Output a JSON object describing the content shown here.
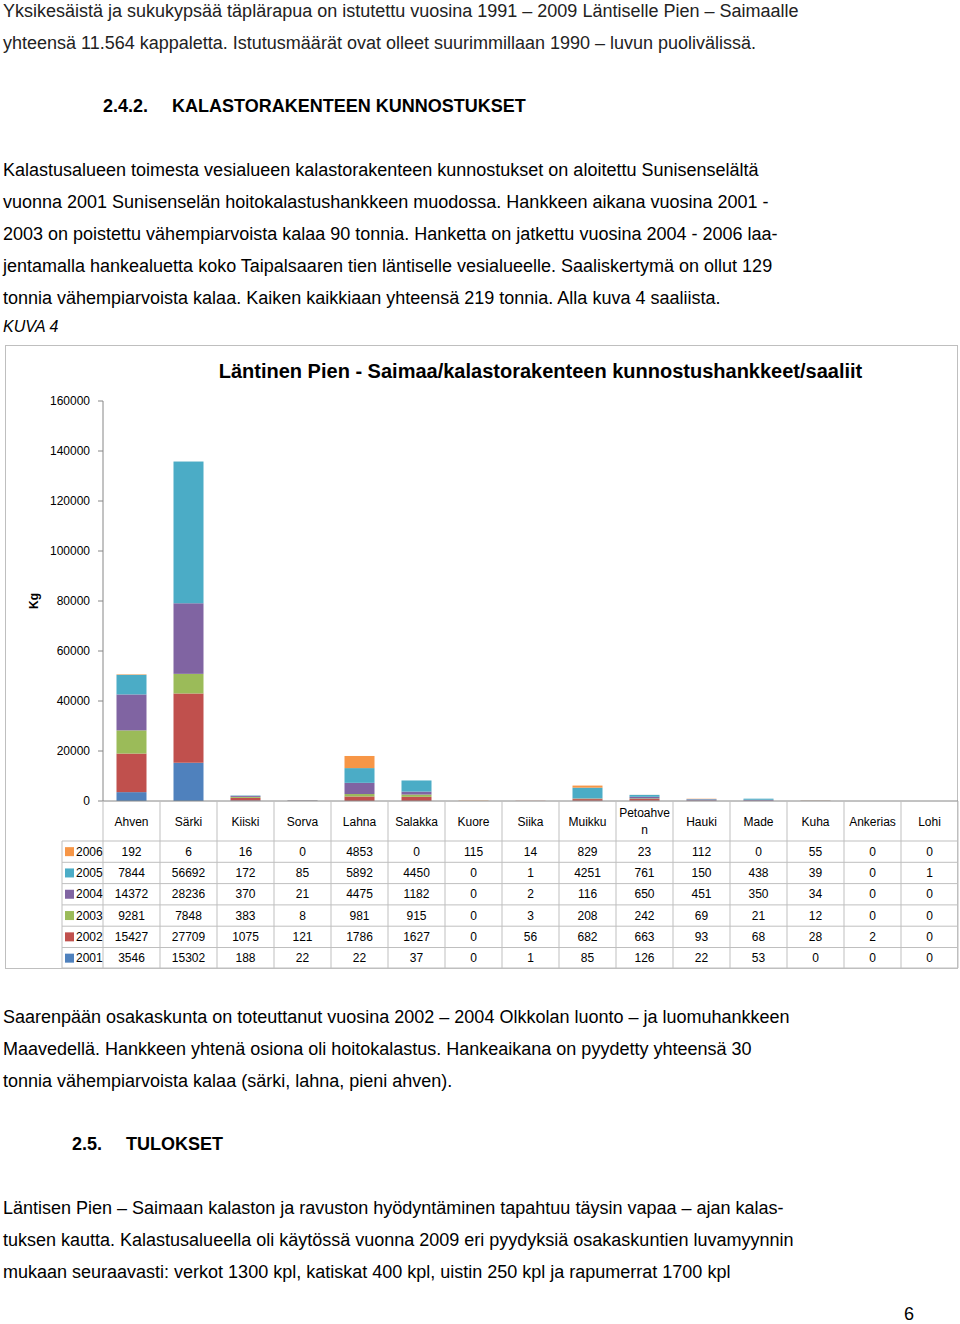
{
  "document": {
    "intro": [
      "Yksikesäistä ja sukukypsää täplärapua on istutettu vuosina 1991 – 2009 Läntiselle Pien – Saimaalle",
      "yhteensä 11.564 kappaletta. Istutusmäärät ovat olleet suurimmillaan 1990 – luvun puolivälissä."
    ],
    "section_1": {
      "number": "2.4.2.",
      "title": "KALASTORAKENTEEN KUNNOSTUKSET",
      "lines": [
        "Kalastusalueen toimesta vesialueen kalastorakenteen kunnostukset on aloitettu Sunisenselältä",
        "vuonna 2001 Sunisenselän hoitokalastushankkeen muodossa. Hankkeen aikana vuosina 2001 -",
        "2003 on poistettu vähempiarvoista kalaa 90 tonnia. Hanketta on jatkettu vuosina 2004 - 2006 laa-",
        "jentamalla hankealuetta koko Taipalsaaren tien läntiselle vesialueelle. Saaliskertymä on ollut 129",
        "tonnia vähempiarvoista kalaa. Kaiken kaikkiaan yhteensä 219 tonnia. Alla kuva 4 saaliista."
      ]
    },
    "figure_label": "KUVA 4",
    "after_chart": [
      "Saarenpään osakaskunta on toteuttanut vuosina 2002 – 2004 Olkkolan luonto – ja luomuhankkeen",
      "Maavedellä. Hankkeen yhtenä osiona oli hoitokalastus. Hankeaikana on pyydetty yhteensä 30",
      "tonnia vähempiarvoista kalaa (särki, lahna, pieni ahven)."
    ],
    "section_2": {
      "number": "2.5.",
      "title": "TULOKSET",
      "lines": [
        "Läntisen Pien – Saimaan kalaston ja ravuston hyödyntäminen tapahtuu täysin vapaa – ajan kalas-",
        "tuksen kautta. Kalastusalueella oli käytössä vuonna 2009 eri pyydyksiä osakaskuntien luvamyynnin",
        "mukaan seuraavasti: verkot 1300 kpl, katiskat 400 kpl, uistin 250 kpl ja rapumerrat 1700 kpl"
      ]
    },
    "page_number": "6"
  },
  "chart_data": {
    "type": "bar",
    "title": "Läntinen Pien - Saimaa/kalastorakenteen kunnostushankkeet/saaliit",
    "y_label": "Kg",
    "stacked": true,
    "grid": false,
    "categories": [
      "Ahven",
      "Särki",
      "Kiiski",
      "Sorva",
      "Lahna",
      "Salakka",
      "Kuore",
      "Siika",
      "Muikku",
      "Petoahven",
      "Hauki",
      "Made",
      "Kuha",
      "Ankerias",
      "Lohi"
    ],
    "series": [
      {
        "name": "2001",
        "color": "#4f81bd",
        "values": [
          3546,
          15302,
          188,
          22,
          22,
          37,
          0,
          1,
          85,
          126,
          22,
          53,
          0,
          0,
          0
        ]
      },
      {
        "name": "2002",
        "color": "#c0504d",
        "values": [
          15427,
          27709,
          1075,
          121,
          1786,
          1627,
          0,
          56,
          682,
          663,
          93,
          68,
          28,
          2,
          0
        ]
      },
      {
        "name": "2003",
        "color": "#9bbb59",
        "values": [
          9281,
          7848,
          383,
          8,
          981,
          915,
          0,
          3,
          208,
          242,
          69,
          21,
          12,
          0,
          0
        ]
      },
      {
        "name": "2004",
        "color": "#8064a2",
        "values": [
          14372,
          28236,
          370,
          21,
          4475,
          1182,
          0,
          2,
          116,
          650,
          451,
          350,
          34,
          0,
          0
        ]
      },
      {
        "name": "2005",
        "color": "#4bacc6",
        "values": [
          7844,
          56692,
          172,
          85,
          5892,
          4450,
          0,
          1,
          4251,
          761,
          150,
          438,
          39,
          0,
          1
        ]
      },
      {
        "name": "2006",
        "color": "#f79646",
        "values": [
          192,
          6,
          16,
          0,
          4853,
          0,
          115,
          14,
          829,
          23,
          112,
          0,
          55,
          0,
          0
        ]
      }
    ],
    "ylim": [
      0,
      160000
    ],
    "yticks": [
      0,
      20000,
      40000,
      60000,
      80000,
      100000,
      120000,
      140000,
      160000
    ]
  }
}
